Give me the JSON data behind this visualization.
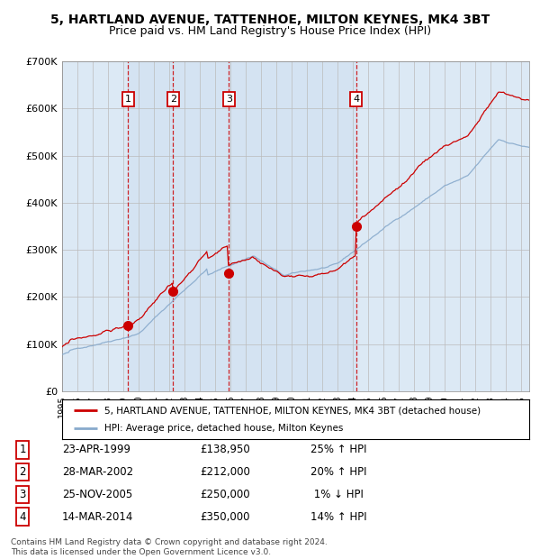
{
  "title1": "5, HARTLAND AVENUE, TATTENHOE, MILTON KEYNES, MK4 3BT",
  "title2": "Price paid vs. HM Land Registry's House Price Index (HPI)",
  "legend1": "5, HARTLAND AVENUE, TATTENHOE, MILTON KEYNES, MK4 3BT (detached house)",
  "legend2": "HPI: Average price, detached house, Milton Keynes",
  "footer": "Contains HM Land Registry data © Crown copyright and database right 2024.\nThis data is licensed under the Open Government Licence v3.0.",
  "transactions": [
    {
      "num": 1,
      "date": "23-APR-1999",
      "year": 1999.31,
      "price": 138950,
      "pct": "25%",
      "dir": "↑"
    },
    {
      "num": 2,
      "date": "28-MAR-2002",
      "year": 2002.24,
      "price": 212000,
      "pct": "20%",
      "dir": "↑"
    },
    {
      "num": 3,
      "date": "25-NOV-2005",
      "year": 2005.9,
      "price": 250000,
      "pct": "1%",
      "dir": "↓"
    },
    {
      "num": 4,
      "date": "14-MAR-2014",
      "year": 2014.2,
      "price": 350000,
      "pct": "14%",
      "dir": "↑"
    }
  ],
  "table_rows": [
    [
      "1",
      "23-APR-1999",
      "£138,950",
      "25% ↑ HPI"
    ],
    [
      "2",
      "28-MAR-2002",
      "£212,000",
      "20% ↑ HPI"
    ],
    [
      "3",
      "25-NOV-2005",
      "£250,000",
      " 1% ↓ HPI"
    ],
    [
      "4",
      "14-MAR-2014",
      "£350,000",
      "14% ↑ HPI"
    ]
  ],
  "ylim": [
    0,
    700000
  ],
  "xlim": [
    1995,
    2025.5
  ],
  "yticks": [
    0,
    100000,
    200000,
    300000,
    400000,
    500000,
    600000,
    700000
  ],
  "ytick_labels": [
    "£0",
    "£100K",
    "£200K",
    "£300K",
    "£400K",
    "£500K",
    "£600K",
    "£700K"
  ],
  "chart_bg": "#dce9f5",
  "shade_bg": "#cfe0f0",
  "red_color": "#cc0000",
  "blue_color": "#88aacc",
  "grid_color": "#bbbbbb",
  "white": "#ffffff"
}
